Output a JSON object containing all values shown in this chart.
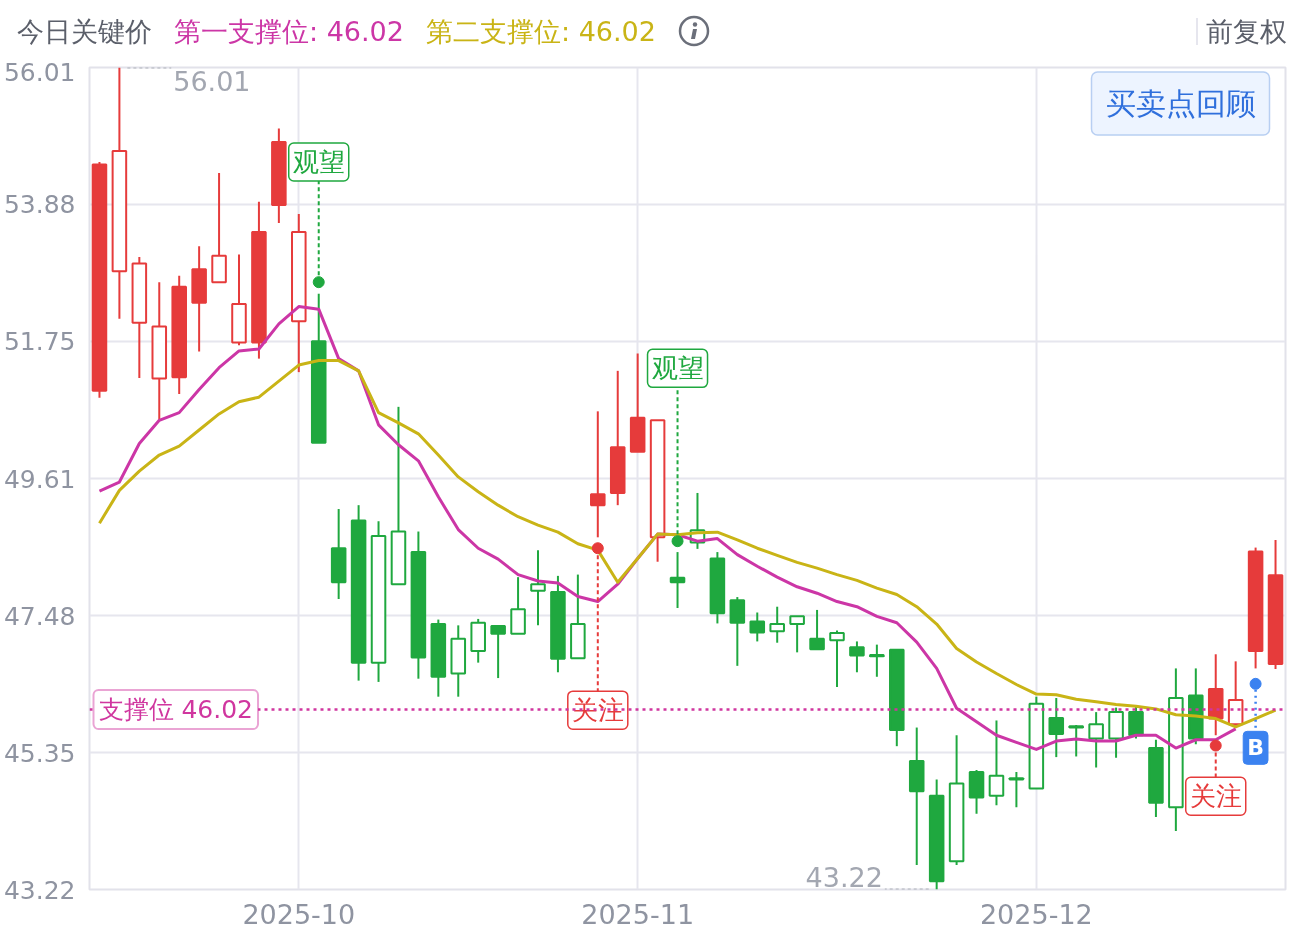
{
  "chart_data": {
    "type": "candlestick",
    "title": "今日关键价",
    "categories": [
      null,
      null,
      null,
      null,
      null,
      null,
      null,
      null,
      null,
      null,
      "2025-10",
      null,
      null,
      null,
      null,
      null,
      null,
      null,
      null,
      null,
      null,
      null,
      null,
      null,
      null,
      null,
      null,
      "2025-11",
      null,
      null,
      null,
      null,
      null,
      null,
      null,
      null,
      null,
      null,
      null,
      null,
      null,
      null,
      null,
      null,
      null,
      null,
      null,
      "2025-12",
      null,
      null,
      null,
      null,
      null,
      null,
      null,
      null,
      null,
      null,
      null,
      null
    ],
    "ohlc": [
      [
        54.5,
        54.54,
        50.87,
        50.98
      ],
      [
        52.84,
        56.01,
        52.1,
        54.71
      ],
      [
        52.04,
        53.06,
        51.18,
        52.96
      ],
      [
        51.17,
        52.67,
        50.53,
        51.98
      ],
      [
        52.6,
        52.77,
        50.93,
        51.19
      ],
      [
        52.87,
        53.23,
        51.59,
        52.35
      ],
      [
        52.67,
        54.37,
        52.67,
        53.08
      ],
      [
        51.73,
        53.1,
        51.69,
        52.33
      ],
      [
        53.45,
        53.92,
        51.48,
        51.73
      ],
      [
        54.85,
        55.06,
        53.59,
        53.87
      ],
      [
        52.06,
        53.73,
        51.27,
        53.45
      ],
      [
        51.75,
        52.49,
        50.17,
        50.17
      ],
      [
        48.53,
        49.14,
        47.74,
        48.0
      ],
      [
        48.96,
        49.2,
        46.47,
        46.75
      ],
      [
        46.75,
        48.95,
        46.45,
        48.72
      ],
      [
        47.97,
        50.73,
        47.97,
        48.79
      ],
      [
        48.47,
        48.79,
        46.5,
        46.83
      ],
      [
        47.35,
        47.42,
        46.22,
        46.53
      ],
      [
        46.58,
        47.33,
        46.22,
        47.12
      ],
      [
        46.93,
        47.43,
        46.75,
        47.37
      ],
      [
        47.32,
        47.32,
        46.51,
        47.2
      ],
      [
        47.2,
        48.08,
        47.2,
        47.58
      ],
      [
        47.87,
        48.5,
        47.33,
        47.97
      ],
      [
        47.85,
        48.1,
        46.6,
        46.81
      ],
      [
        46.82,
        48.12,
        46.82,
        47.35
      ],
      [
        49.37,
        50.66,
        48.7,
        49.2
      ],
      [
        50.1,
        51.29,
        49.2,
        49.39
      ],
      [
        50.56,
        51.56,
        50.03,
        50.03
      ],
      [
        48.7,
        50.52,
        48.32,
        50.52
      ],
      [
        48.07,
        48.47,
        47.6,
        48.0
      ],
      [
        48.62,
        49.39,
        48.52,
        48.81
      ],
      [
        48.37,
        48.47,
        47.36,
        47.52
      ],
      [
        47.72,
        47.77,
        46.7,
        47.37
      ],
      [
        47.39,
        47.53,
        47.08,
        47.22
      ],
      [
        47.24,
        47.62,
        47.06,
        47.35
      ],
      [
        47.35,
        47.47,
        46.91,
        47.47
      ],
      [
        47.12,
        47.57,
        46.96,
        46.96
      ],
      [
        47.1,
        47.25,
        46.37,
        47.21
      ],
      [
        46.99,
        47.08,
        46.6,
        46.86
      ],
      [
        46.87,
        47.03,
        46.53,
        46.85
      ],
      [
        46.95,
        46.95,
        45.45,
        45.7
      ],
      [
        45.22,
        45.74,
        43.6,
        44.75
      ],
      [
        44.68,
        44.93,
        43.22,
        43.35
      ],
      [
        43.66,
        45.62,
        43.6,
        44.87
      ],
      [
        45.05,
        45.08,
        44.4,
        44.65
      ],
      [
        44.68,
        45.85,
        44.53,
        44.99
      ],
      [
        44.95,
        45.05,
        44.5,
        44.93
      ],
      [
        44.79,
        46.22,
        44.79,
        46.11
      ],
      [
        45.89,
        46.2,
        45.28,
        45.64
      ],
      [
        45.76,
        45.78,
        45.29,
        45.74
      ],
      [
        45.57,
        45.98,
        45.12,
        45.79
      ],
      [
        45.57,
        46.05,
        45.27,
        45.98
      ],
      [
        45.98,
        46.07,
        45.57,
        45.62
      ],
      [
        45.42,
        45.55,
        44.35,
        44.57
      ],
      [
        44.5,
        46.66,
        44.13,
        46.2
      ],
      [
        46.24,
        46.66,
        45.48,
        45.57
      ],
      [
        46.34,
        46.88,
        45.62,
        45.88
      ],
      [
        45.79,
        46.77,
        45.79,
        46.17
      ],
      [
        48.48,
        48.54,
        46.66,
        46.93
      ],
      [
        48.11,
        48.66,
        46.65,
        46.73
      ]
    ],
    "colors": [
      "#e63b3b",
      "#e63b3b",
      "#e63b3b",
      "#e63b3b",
      "#e63b3b",
      "#e63b3b",
      "#e63b3b",
      "#e63b3b",
      "#e63b3b",
      "#e63b3b",
      "#e63b3b",
      "#1fa83f",
      "#1fa83f",
      "#1fa83f",
      "#1fa83f",
      "#1fa83f",
      "#1fa83f",
      "#1fa83f",
      "#1fa83f",
      "#1fa83f",
      "#1fa83f",
      "#1fa83f",
      "#1fa83f",
      "#1fa83f",
      "#1fa83f",
      "#e63b3b",
      "#e63b3b",
      "#e63b3b",
      "#e63b3b",
      "#1fa83f",
      "#1fa83f",
      "#1fa83f",
      "#1fa83f",
      "#1fa83f",
      "#1fa83f",
      "#1fa83f",
      "#1fa83f",
      "#1fa83f",
      "#1fa83f",
      "#1fa83f",
      "#1fa83f",
      "#1fa83f",
      "#1fa83f",
      "#1fa83f",
      "#1fa83f",
      "#1fa83f",
      "#1fa83f",
      "#1fa83f",
      "#1fa83f",
      "#1fa83f",
      "#1fa83f",
      "#1fa83f",
      "#1fa83f",
      "#1fa83f",
      "#1fa83f",
      "#1fa83f",
      "#e63b3b",
      "#e63b3b",
      "#e63b3b",
      "#e63b3b"
    ],
    "series": [
      {
        "type": "line",
        "color": "#cc36a6",
        "values": [
          49.42,
          49.56,
          50.16,
          50.52,
          50.64,
          51.0,
          51.34,
          51.6,
          51.63,
          52.02,
          52.29,
          52.25,
          51.48,
          51.29,
          50.45,
          50.14,
          49.89,
          49.33,
          48.82,
          48.53,
          48.36,
          48.12,
          48.02,
          47.99,
          47.78,
          47.7,
          47.97,
          48.37,
          48.75,
          48.74,
          48.64,
          48.68,
          48.43,
          48.25,
          48.08,
          47.93,
          47.83,
          47.7,
          47.62,
          47.47,
          47.37,
          47.07,
          46.66,
          46.04,
          45.83,
          45.62,
          45.51,
          45.4,
          45.53,
          45.56,
          45.53,
          45.53,
          45.62,
          45.62,
          45.42,
          45.55,
          45.55,
          45.72,
          null,
          null
        ]
      },
      {
        "type": "line",
        "color": "#c9b416",
        "values": [
          48.92,
          49.43,
          49.73,
          49.98,
          50.12,
          50.37,
          50.62,
          50.81,
          50.88,
          51.13,
          51.38,
          51.45,
          51.45,
          51.29,
          50.64,
          50.48,
          50.31,
          49.98,
          49.64,
          49.41,
          49.2,
          49.02,
          48.89,
          48.78,
          48.6,
          48.5,
          48.0,
          48.37,
          48.75,
          48.74,
          48.77,
          48.78,
          48.66,
          48.53,
          48.42,
          48.31,
          48.22,
          48.12,
          48.03,
          47.91,
          47.81,
          47.62,
          47.35,
          46.97,
          46.76,
          46.58,
          46.41,
          46.26,
          46.25,
          46.18,
          46.14,
          46.1,
          46.07,
          46.03,
          45.94,
          45.92,
          45.88,
          45.75,
          45.88,
          46.01
        ]
      },
      {
        "type": "scatter",
        "marker": "circle",
        "values": [
          null,
          null,
          null,
          null,
          null,
          null,
          null,
          null,
          null,
          null,
          null,
          52.67,
          null,
          null,
          null,
          null,
          null,
          null,
          null,
          null,
          null,
          null,
          null,
          null,
          null,
          48.53,
          null,
          null,
          null,
          48.64,
          null,
          null,
          null,
          null,
          null,
          null,
          null,
          null,
          null,
          null,
          null,
          null,
          null,
          null,
          null,
          null,
          null,
          null,
          null,
          null,
          null,
          null,
          null,
          null,
          null,
          null,
          45.46,
          null,
          46.42,
          null
        ],
        "colors": [
          null,
          null,
          null,
          null,
          null,
          null,
          null,
          null,
          null,
          null,
          null,
          "#1fa83f",
          null,
          null,
          null,
          null,
          null,
          null,
          null,
          null,
          null,
          null,
          null,
          null,
          null,
          "#e63b3b",
          null,
          null,
          null,
          "#1fa83f",
          null,
          null,
          null,
          null,
          null,
          null,
          null,
          null,
          null,
          null,
          null,
          null,
          null,
          null,
          null,
          null,
          null,
          null,
          null,
          null,
          null,
          null,
          null,
          null,
          null,
          null,
          "#e63b3b",
          null,
          "#3b82f0",
          null
        ],
        "value_labels": [
          null,
          null,
          null,
          null,
          null,
          null,
          null,
          null,
          null,
          null,
          null,
          "观望",
          null,
          null,
          null,
          null,
          null,
          null,
          null,
          null,
          null,
          null,
          null,
          null,
          null,
          "关注",
          null,
          null,
          null,
          "观望",
          null,
          null,
          null,
          null,
          null,
          null,
          null,
          null,
          null,
          null,
          null,
          null,
          null,
          null,
          null,
          null,
          null,
          null,
          null,
          null,
          null,
          null,
          null,
          null,
          null,
          null,
          "关注",
          null,
          "B",
          null
        ]
      }
    ],
    "ylim": [
      43.22,
      56.01
    ],
    "yticks": [
      43.22,
      45.35,
      47.48,
      49.61,
      51.75,
      53.88,
      56.01
    ],
    "grid": true,
    "ref_lines": [
      {
        "axis": "y",
        "value": 46.02,
        "label": "支撑位 46.02",
        "color": "#d0369f",
        "line_style": "dotted"
      }
    ],
    "annotations": [
      "第一支撑位: 46.02",
      "第二支撑位: 46.02",
      "前复权",
      "买卖点回顾",
      "56.01",
      "43.22"
    ]
  }
}
